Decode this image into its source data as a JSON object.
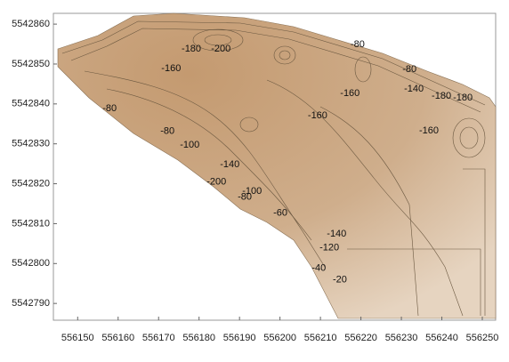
{
  "chart_data": {
    "type": "contour",
    "xlim": [
      556144,
      556253.3
    ],
    "ylim": [
      5542785.8,
      5542862.7
    ],
    "xticks": [
      556150,
      556160,
      556170,
      556180,
      556190,
      556200,
      556210,
      556220,
      556230,
      556240,
      556250
    ],
    "yticks": [
      5542790,
      5542800,
      5542810,
      5542820,
      5542830,
      5542840,
      5542850,
      5542860
    ],
    "fill_color": "#c49a70",
    "line_color": "#6b5840",
    "contour_labels": [
      {
        "label": "-180",
        "x": 556178.1,
        "y": 5542853.8
      },
      {
        "label": "-200",
        "x": 556185.4,
        "y": 5542853.8
      },
      {
        "label": "-160",
        "x": 556173.1,
        "y": 5542848.9
      },
      {
        "label": "-80",
        "x": 556219.2,
        "y": 5542854.9
      },
      {
        "label": "-80",
        "x": 556157.9,
        "y": 5542838.8
      },
      {
        "label": "-160",
        "x": 556217.3,
        "y": 5542842.6
      },
      {
        "label": "-160",
        "x": 556209.3,
        "y": 5542837.1
      },
      {
        "label": "-140",
        "x": 556233.1,
        "y": 5542843.7
      },
      {
        "label": "-80",
        "x": 556232.0,
        "y": 5542848.6
      },
      {
        "label": "-180",
        "x": 556239.9,
        "y": 5542842.0
      },
      {
        "label": "-180",
        "x": 556245.2,
        "y": 5542841.5
      },
      {
        "label": "-160",
        "x": 556236.8,
        "y": 5542833.3
      },
      {
        "label": "-80",
        "x": 556172.2,
        "y": 5542833.1
      },
      {
        "label": "-100",
        "x": 556177.7,
        "y": 5542829.7
      },
      {
        "label": "-140",
        "x": 556187.6,
        "y": 5542824.8
      },
      {
        "label": "-200",
        "x": 556184.3,
        "y": 5542820.4
      },
      {
        "label": "-100",
        "x": 556193.1,
        "y": 5542818.1
      },
      {
        "label": "-80",
        "x": 556191.3,
        "y": 5542816.6
      },
      {
        "label": "-60",
        "x": 556200.1,
        "y": 5542812.6
      },
      {
        "label": "-140",
        "x": 556214.0,
        "y": 5542807.4
      },
      {
        "label": "-120",
        "x": 556212.2,
        "y": 5542803.9
      },
      {
        "label": "-40",
        "x": 556209.6,
        "y": 5542798.8
      },
      {
        "label": "-20",
        "x": 556214.8,
        "y": 5542795.9
      }
    ]
  }
}
